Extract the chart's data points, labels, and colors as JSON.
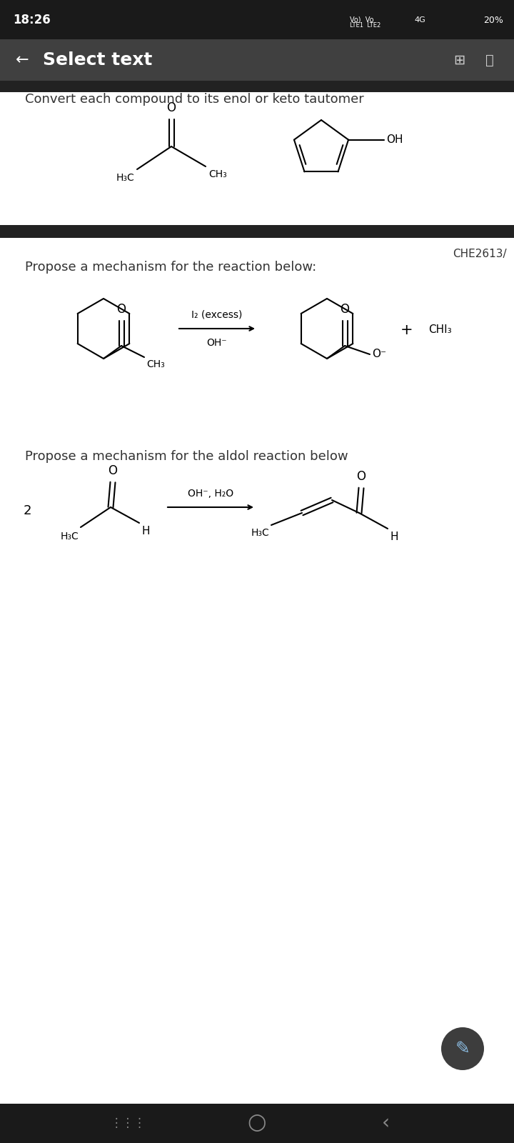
{
  "status_bar_text": "18:26",
  "nav_bar_title": "Select text",
  "section1_title": "Convert each compound to its enol or keto tautomer",
  "section2_title": "Propose a mechanism for the reaction below:",
  "section3_title": "Propose a mechanism for the aldol reaction below",
  "che_label": "CHE2613/",
  "bg_color": "#ffffff",
  "status_bg": "#1a1a1a",
  "nav_bg": "#404040",
  "separator_bg": "#222222",
  "text_color": "#000000",
  "font_size_title": 13,
  "font_size_label": 11,
  "font_size_small": 9
}
